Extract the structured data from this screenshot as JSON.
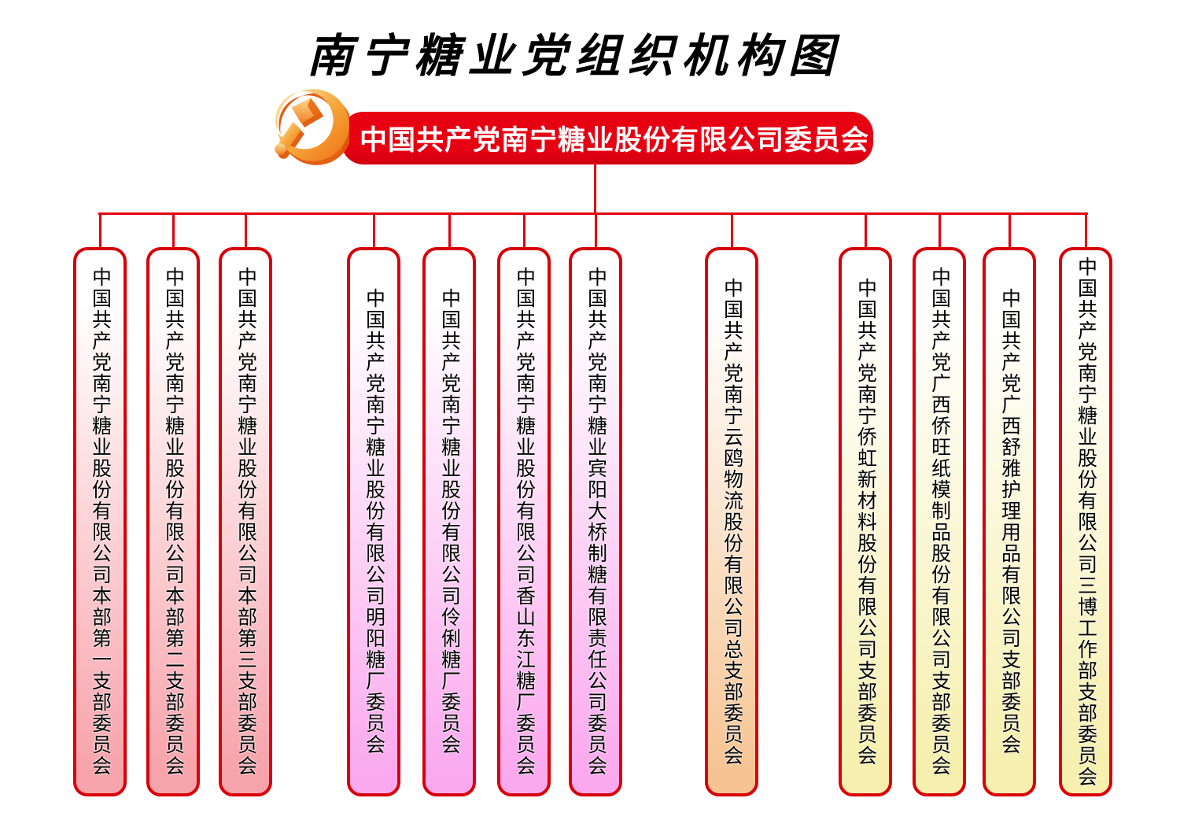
{
  "title": "南宁糖业党组织机构图",
  "root": {
    "label": "中国共产党南宁糖业股份有限公司委员会",
    "emblem_icon": "party-emblem-icon"
  },
  "palette": {
    "banner_red": "#E60012",
    "line_red": "#E30010",
    "border_red": "#D80009",
    "pink": "#F7A3AB",
    "magenta": "#FAA9EE",
    "orange": "#F6C493",
    "yellow": "#F6EFAD"
  },
  "branches": [
    {
      "label": "中国共产党南宁糖业股份有限公司本部第一支部委员会",
      "group": "pink"
    },
    {
      "label": "中国共产党南宁糖业股份有限公司本部第二支部委员会",
      "group": "pink"
    },
    {
      "label": "中国共产党南宁糖业股份有限公司本部第三支部委员会",
      "group": "pink"
    },
    {
      "label": "中国共产党南宁糖业股份有限公司明阳糖厂委员会",
      "group": "magenta"
    },
    {
      "label": "中国共产党南宁糖业股份有限公司伶俐糖厂委员会",
      "group": "magenta"
    },
    {
      "label": "中国共产党南宁糖业股份有限公司香山东江糖厂委员会",
      "group": "magenta"
    },
    {
      "label": "中国共产党南宁糖业宾阳大桥制糖有限责任公司委员会",
      "group": "magenta"
    },
    {
      "label": "中国共产党南宁云鸥物流股份有限公司总支部委员会",
      "group": "orange"
    },
    {
      "label": "中国共产党南宁侨虹新材料股份有限公司支部委员会",
      "group": "yellow"
    },
    {
      "label": "中国共产党广西侨旺纸模制品股份有限公司支部委员会",
      "group": "yellow"
    },
    {
      "label": "中国共产党广西舒雅护理用品有限公司支部委员会",
      "group": "yellow"
    },
    {
      "label": "中国共产党南宁糖业股份有限公司三博工作部支部委员会",
      "group": "yellow"
    }
  ]
}
